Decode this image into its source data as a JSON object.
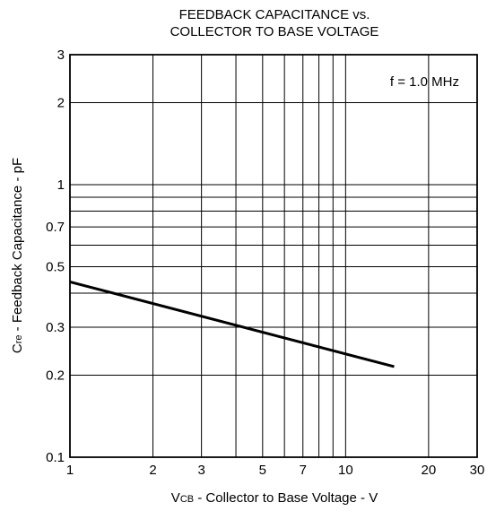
{
  "chart_data": {
    "type": "line",
    "title": [
      "FEEDBACK CAPACITANCE vs.",
      "COLLECTOR TO BASE VOLTAGE"
    ],
    "xlabel": {
      "main": "V",
      "sub": "CB",
      "rest": " - Collector to Base Voltage - V"
    },
    "ylabel": {
      "main": "C",
      "sub": "re",
      "rest": " - Feedback Capacitance - pF"
    },
    "x_scale": "log",
    "y_scale": "log",
    "xlim": [
      1,
      30
    ],
    "ylim": [
      0.1,
      3
    ],
    "x_ticks": [
      1,
      2,
      3,
      5,
      7,
      10,
      20,
      30
    ],
    "x_tick_labels": [
      "1",
      "2",
      "3",
      "5",
      "7",
      "10",
      "20",
      "30"
    ],
    "y_ticks": [
      0.1,
      0.2,
      0.3,
      0.5,
      0.7,
      1,
      2,
      3
    ],
    "y_tick_labels": [
      "0.1",
      "0.2",
      "0.3",
      "0.5",
      "0.7",
      "1",
      "2",
      "3"
    ],
    "x_grid": [
      2,
      3,
      4,
      5,
      6,
      7,
      8,
      9,
      10,
      20
    ],
    "y_grid": [
      0.2,
      0.3,
      0.4,
      0.5,
      0.6,
      0.7,
      0.8,
      0.9,
      1,
      2
    ],
    "grid": true,
    "annotation": "f = 1.0 MHz",
    "series": [
      {
        "x": [
          1,
          15
        ],
        "y": [
          0.44,
          0.215
        ]
      }
    ],
    "line_color": "#000000"
  }
}
